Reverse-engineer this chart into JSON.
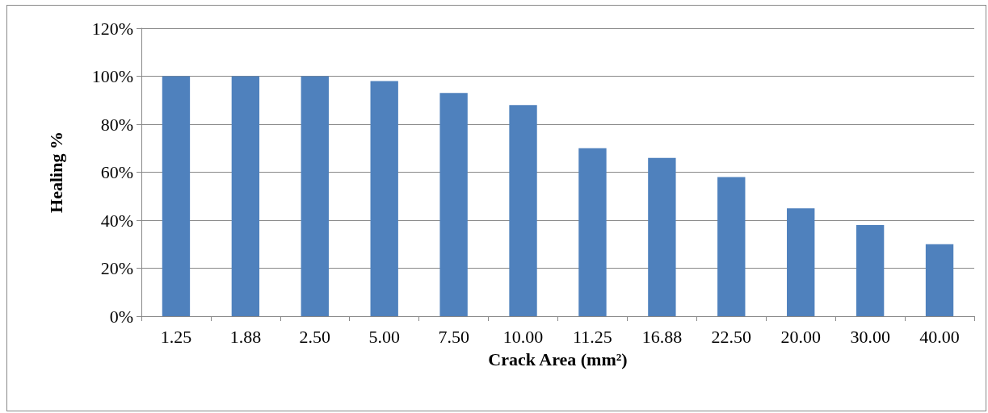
{
  "chart_data": {
    "type": "bar",
    "xlabel": "Crack Area (mm²)",
    "ylabel": "Healing %",
    "categories": [
      "1.25",
      "1.88",
      "2.50",
      "5.00",
      "7.50",
      "10.00",
      "11.25",
      "16.88",
      "22.50",
      "20.00",
      "30.00",
      "40.00"
    ],
    "values": [
      100,
      100,
      100,
      98,
      93,
      88,
      70,
      66,
      58,
      45,
      38,
      30
    ],
    "color": "#4f81bd",
    "ylim": [
      0,
      120
    ],
    "yticks": [
      {
        "value": 0,
        "label": "0%"
      },
      {
        "value": 20,
        "label": "20%"
      },
      {
        "value": 40,
        "label": "40%"
      },
      {
        "value": 60,
        "label": "60%"
      },
      {
        "value": 80,
        "label": "80%"
      },
      {
        "value": 100,
        "label": "100%"
      },
      {
        "value": 120,
        "label": "120%"
      }
    ],
    "grid": "y"
  }
}
